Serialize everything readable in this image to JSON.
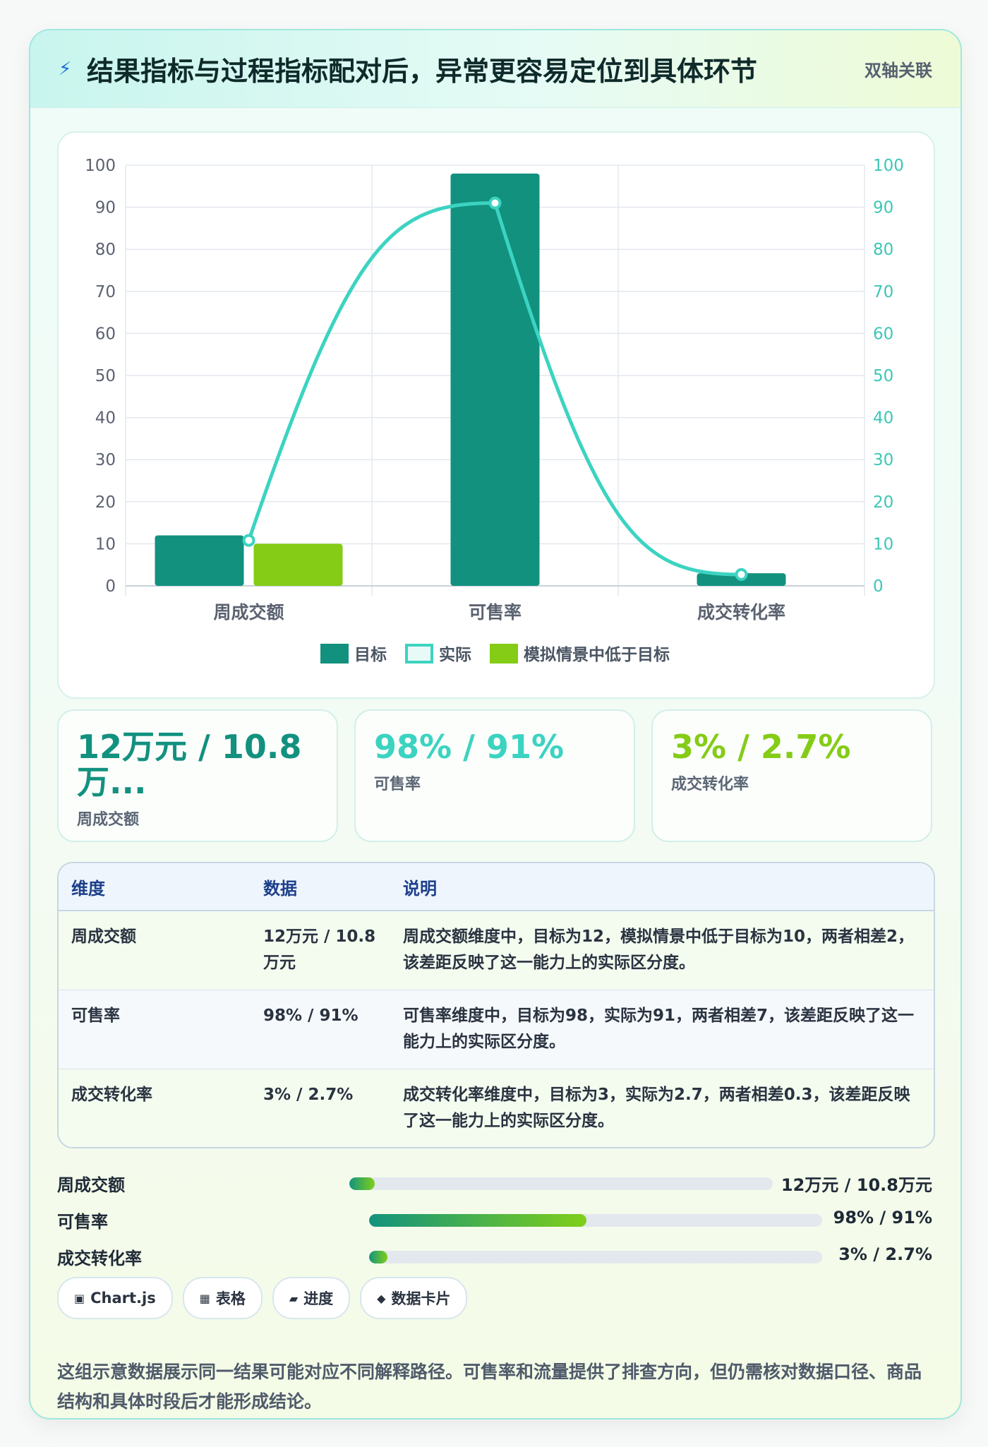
{
  "header": {
    "title": "结果指标与过程指标配对后，异常更容易定位到具体环节",
    "tag": "双轴关联",
    "icon": "lightning-icon"
  },
  "chart_data": {
    "type": "bar",
    "categories": [
      "周成交额",
      "可售率",
      "成交转化率"
    ],
    "series": [
      {
        "name": "目标",
        "kind": "bar",
        "axis": "left",
        "color": "#12917f",
        "values": [
          12,
          98,
          3
        ]
      },
      {
        "name": "实际",
        "kind": "line",
        "axis": "right",
        "color": "#3cd3c1",
        "values": [
          10.8,
          91,
          2.7
        ]
      },
      {
        "name": "模拟情景中低于目标",
        "kind": "bar",
        "axis": "left",
        "color": "#84cc16",
        "values": [
          10,
          null,
          null
        ]
      }
    ],
    "ylim": [
      0,
      100
    ],
    "y2lim": [
      0,
      100
    ],
    "yticks": [
      0,
      10,
      20,
      30,
      40,
      50,
      60,
      70,
      80,
      90,
      100
    ],
    "grid": true,
    "legend_position": "bottom"
  },
  "stats": [
    {
      "value": "12万元 / 10.8万...",
      "label": "周成交额",
      "color": "#12917f"
    },
    {
      "value": "98% / 91%",
      "label": "可售率",
      "color": "#3cd3c1"
    },
    {
      "value": "3% / 2.7%",
      "label": "成交转化率",
      "color": "#84cc16"
    }
  ],
  "table": {
    "headers": [
      "维度",
      "数据",
      "说明"
    ],
    "rows": [
      {
        "dim": "周成交额",
        "data": "12万元 / 10.8万元",
        "desc": "周成交额维度中，目标为12，模拟情景中低于目标为10，两者相差2，该差距反映了这一能力上的实际区分度。"
      },
      {
        "dim": "可售率",
        "data": "98% / 91%",
        "desc": "可售率维度中，目标为98，实际为91，两者相差7，该差距反映了这一能力上的实际区分度。"
      },
      {
        "dim": "成交转化率",
        "data": "3% / 2.7%",
        "desc": "成交转化率维度中，目标为3，实际为2.7，两者相差0.3，该差距反映了这一能力上的实际区分度。"
      }
    ]
  },
  "progress": [
    {
      "label": "周成交额",
      "value_text": "12万元 / 10.8万元",
      "fraction": 0.06
    },
    {
      "label": "可售率",
      "value_text": "98% / 91%",
      "fraction": 0.48
    },
    {
      "label": "成交转化率",
      "value_text": "3% / 2.7%",
      "fraction": 0.04
    }
  ],
  "badges": [
    {
      "icon": "chart-icon",
      "glyph": "▣",
      "label": "Chart.js"
    },
    {
      "icon": "table-icon",
      "glyph": "▦",
      "label": "表格"
    },
    {
      "icon": "progress-icon",
      "glyph": "▰",
      "label": "进度"
    },
    {
      "icon": "card-icon",
      "glyph": "◆",
      "label": "数据卡片"
    }
  ],
  "note": "这组示意数据展示同一结果可能对应不同解释路径。可售率和流量提供了排查方向，但仍需核对数据口径、商品结构和具体时段后才能形成结论。"
}
